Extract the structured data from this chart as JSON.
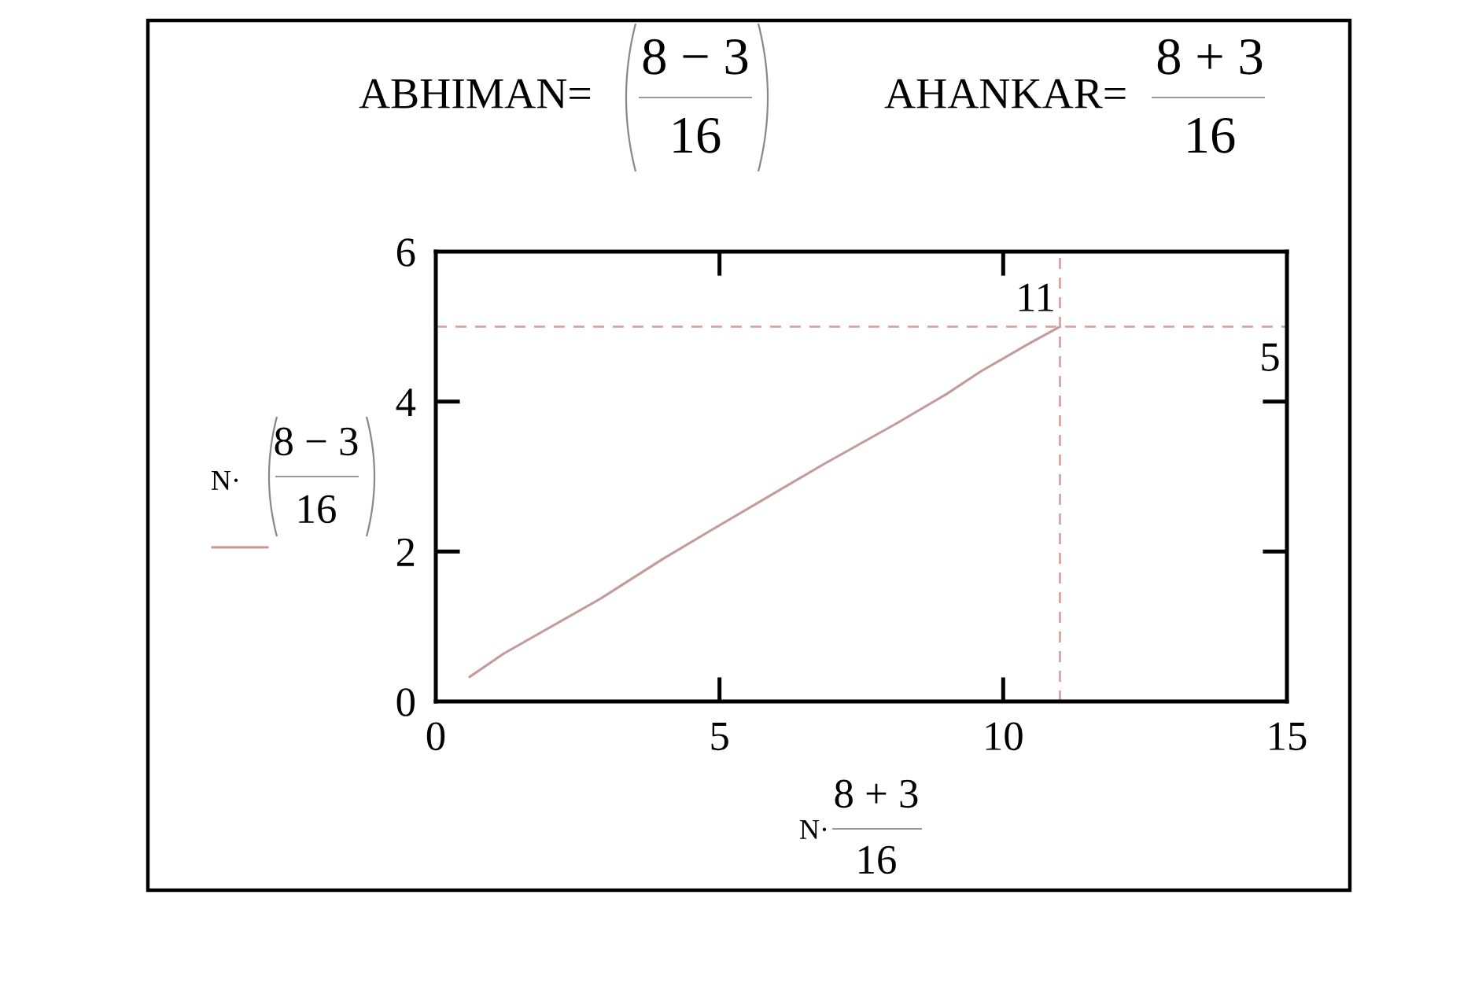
{
  "chart_data": {
    "type": "line",
    "xlabel": "N·",
    "annotations": [
      "ABHIMAN=",
      "8 − 3",
      "16",
      "AHANKAR=",
      "8 + 3",
      "16",
      "N·",
      "8 − 3",
      "16",
      "8 + 3",
      "16"
    ],
    "x": [
      0.6,
      1.2,
      2.9,
      4.0,
      4.8,
      5.9,
      6.8,
      8.1,
      9.0,
      9.6,
      10.4,
      11
    ],
    "series": [
      {
        "color": "#c49a9a",
        "values": [
          0.33,
          0.64,
          1.37,
          1.9,
          2.26,
          2.75,
          3.15,
          3.7,
          4.1,
          4.4,
          4.75,
          5
        ]
      }
    ],
    "xlim": [
      0,
      15
    ],
    "ylim": [
      0,
      6
    ],
    "xticks": [
      0,
      5,
      10,
      15
    ],
    "yticks": [
      0,
      2,
      4,
      6
    ],
    "ref_lines": [
      {
        "axis": "x",
        "value": 11,
        "label": "11",
        "color": "#d4a5a5",
        "line_style": "dashed"
      },
      {
        "axis": "y",
        "value": 5,
        "label": "5",
        "color": "#d4a5a5",
        "line_style": "dashed"
      }
    ],
    "marker": "none",
    "line_style": "solid"
  }
}
